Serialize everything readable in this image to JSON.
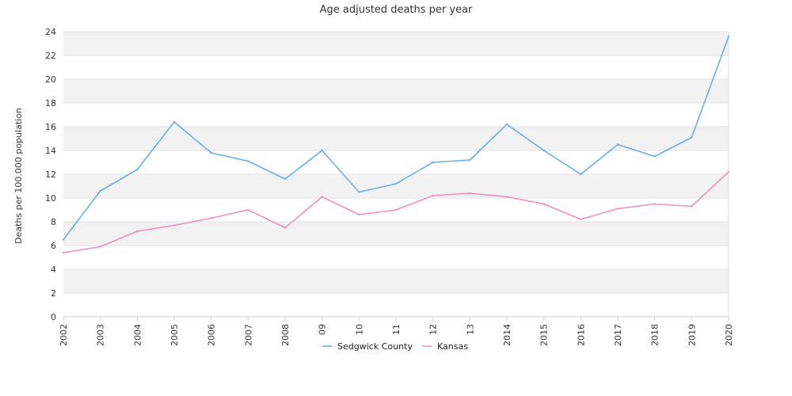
{
  "chart_data": {
    "type": "line",
    "title": "Age adjusted deaths per year",
    "ylabel": "Deaths per 100.000 population",
    "xlabel": "",
    "x": [
      "2002",
      "2003",
      "2004",
      "2005",
      "2006",
      "2007",
      "2008",
      "09",
      "10",
      "11",
      "12",
      "13",
      "2014",
      "2015",
      "2016",
      "2017",
      "2018",
      "2019",
      "2020"
    ],
    "ylim": [
      0,
      24
    ],
    "yticks": [
      0,
      2,
      4,
      6,
      8,
      10,
      12,
      14,
      16,
      18,
      20,
      22,
      24
    ],
    "grid": "alternating horizontal bands",
    "legend_position": "bottom",
    "series": [
      {
        "name": "Sedgwick County",
        "color": "#6aaee8",
        "values": [
          6.5,
          10.6,
          12.4,
          16.4,
          13.8,
          13.1,
          11.6,
          14.0,
          10.5,
          11.2,
          13.0,
          13.2,
          16.2,
          14.0,
          12.0,
          14.5,
          13.5,
          15.1,
          23.6
        ]
      },
      {
        "name": "Kansas",
        "color": "#ee8fbd",
        "values": [
          5.4,
          5.9,
          7.2,
          7.7,
          8.3,
          9.0,
          7.5,
          10.1,
          8.6,
          9.0,
          10.2,
          10.4,
          10.1,
          9.5,
          8.2,
          9.1,
          9.5,
          9.3,
          12.2
        ]
      }
    ]
  }
}
